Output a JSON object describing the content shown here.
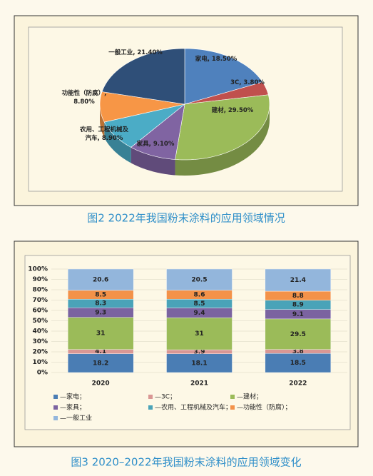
{
  "chart_data": [
    {
      "type": "pie3d",
      "values": [
        18.5,
        3.8,
        29.5,
        9.1,
        8.9,
        8.8,
        21.4
      ],
      "value_labels": [
        "家电, 18.50%",
        "3C, 3.80%",
        "建材, 29.50%",
        "家具, 9.10%",
        "农用、工程机械及汽车, 8.90%",
        "功能性（防腐）, 8.80%",
        "一般工业, 21.40%"
      ],
      "colors": [
        "#4f81bd",
        "#c0504d",
        "#9bbb59",
        "#8064a2",
        "#4bacc6",
        "#f79646",
        "#2f4f78"
      ]
    },
    {
      "type": "stacked_bar",
      "categories": [
        "2020",
        "2021",
        "2022"
      ],
      "series": [
        {
          "name": "—家电；",
          "color": "#4a7db4",
          "values": [
            18.2,
            18.1,
            18.5
          ]
        },
        {
          "name": "—3C；",
          "color": "#d99794",
          "values": [
            4.1,
            3.9,
            3.8
          ]
        },
        {
          "name": "—建材；",
          "color": "#9bbb59",
          "values": [
            31,
            31,
            29.5
          ]
        },
        {
          "name": "—家具；",
          "color": "#7b63a0",
          "values": [
            9.3,
            9.4,
            9.1
          ]
        },
        {
          "name": "—农用、工程机械及汽车；",
          "color": "#4aa3b8",
          "values": [
            8.3,
            8.5,
            8.9
          ]
        },
        {
          "name": "—功能性（防腐）；",
          "color": "#f39249",
          "values": [
            8.5,
            8.6,
            8.8
          ]
        },
        {
          "name": "—一般工业",
          "color": "#93b6dc",
          "values": [
            20.6,
            20.5,
            21.4
          ]
        }
      ],
      "ylim": [
        0,
        100
      ],
      "yticks": [
        {
          "value": 0,
          "label": "0%"
        },
        {
          "value": 10,
          "label": "10%"
        },
        {
          "value": 20,
          "label": "20%"
        },
        {
          "value": 30,
          "label": "30%"
        },
        {
          "value": 40,
          "label": "40%"
        },
        {
          "value": 50,
          "label": "50%"
        },
        {
          "value": 60,
          "label": "60%"
        },
        {
          "value": 70,
          "label": "70%"
        },
        {
          "value": 80,
          "label": "80%"
        },
        {
          "value": 90,
          "label": "90%"
        },
        {
          "value": 100,
          "label": "100%"
        }
      ],
      "grid": true
    }
  ],
  "captions": [
    "图2 2022年我国粉末涂料的应用领域情况",
    "图3 2020–2022年我国粉末涂料的应用领域变化"
  ]
}
